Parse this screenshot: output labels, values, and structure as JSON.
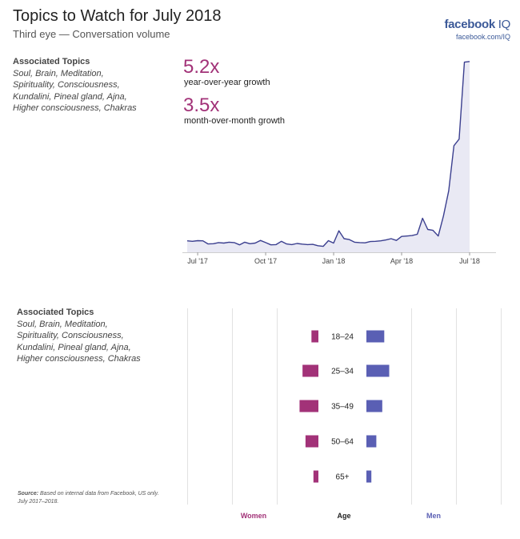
{
  "header": {
    "title": "Topics to Watch for July 2018",
    "subtitle": "Third eye — Conversation volume"
  },
  "brand": {
    "name": "facebook",
    "suffix": " IQ",
    "url": "facebook.com/IQ",
    "color": "#3b5998"
  },
  "topics": {
    "heading": "Associated Topics",
    "lines": [
      "Soul, Brain, Meditation,",
      "Spirituality, Consciousness,",
      "Kundalini, Pineal gland, Ajna,",
      "Higher consciousness, Chakras"
    ]
  },
  "stats": {
    "yoy_value": "5.2x",
    "yoy_label": "year-over-year growth",
    "mom_value": "3.5x",
    "mom_label": "month-over-month growth"
  },
  "source": {
    "label": "Source:",
    "text": " Based on internal data from Facebook, US only.",
    "line2": "July 2017–2018."
  },
  "chart_data": [
    {
      "type": "area",
      "x_ticks": [
        "Jul '17",
        "Oct '17",
        "Jan '18",
        "Apr '18",
        "Jul '18"
      ],
      "x_tick_weeks": [
        2,
        15,
        28,
        41,
        54
      ],
      "values": [
        5.2,
        5.0,
        5.3,
        5.2,
        3.8,
        3.9,
        4.4,
        4.2,
        4.6,
        4.4,
        3.4,
        4.6,
        3.9,
        4.2,
        5.4,
        4.4,
        3.4,
        3.5,
        5.0,
        3.8,
        3.5,
        4.0,
        3.7,
        3.5,
        3.6,
        3.0,
        2.7,
        5.3,
        4.2,
        9.8,
        6.2,
        5.8,
        4.6,
        4.4,
        4.3,
        4.9,
        5.0,
        5.2,
        5.6,
        6.2,
        5.4,
        7.2,
        7.4,
        7.6,
        8.2,
        15.5,
        10.4,
        10.0,
        7.4,
        16.5,
        28.0,
        48.5,
        51.5,
        86.5,
        86.8
      ],
      "ylim": [
        0,
        90
      ],
      "line_color": "#3b3f8f",
      "fill_color": "#e9e9f4",
      "grid": false
    },
    {
      "type": "bar",
      "orientation": "horizontal-butterfly",
      "categories": [
        "18–24",
        "25–34",
        "35–49",
        "50–64",
        "65+"
      ],
      "series": [
        {
          "name": "Women",
          "values": [
            7,
            16,
            19,
            13,
            5
          ],
          "color": "#a23278"
        },
        {
          "name": "Men",
          "values": [
            18,
            23,
            16,
            10,
            5
          ],
          "color": "#5a5fb4"
        }
      ],
      "center_label": "Age",
      "grid": true
    }
  ]
}
